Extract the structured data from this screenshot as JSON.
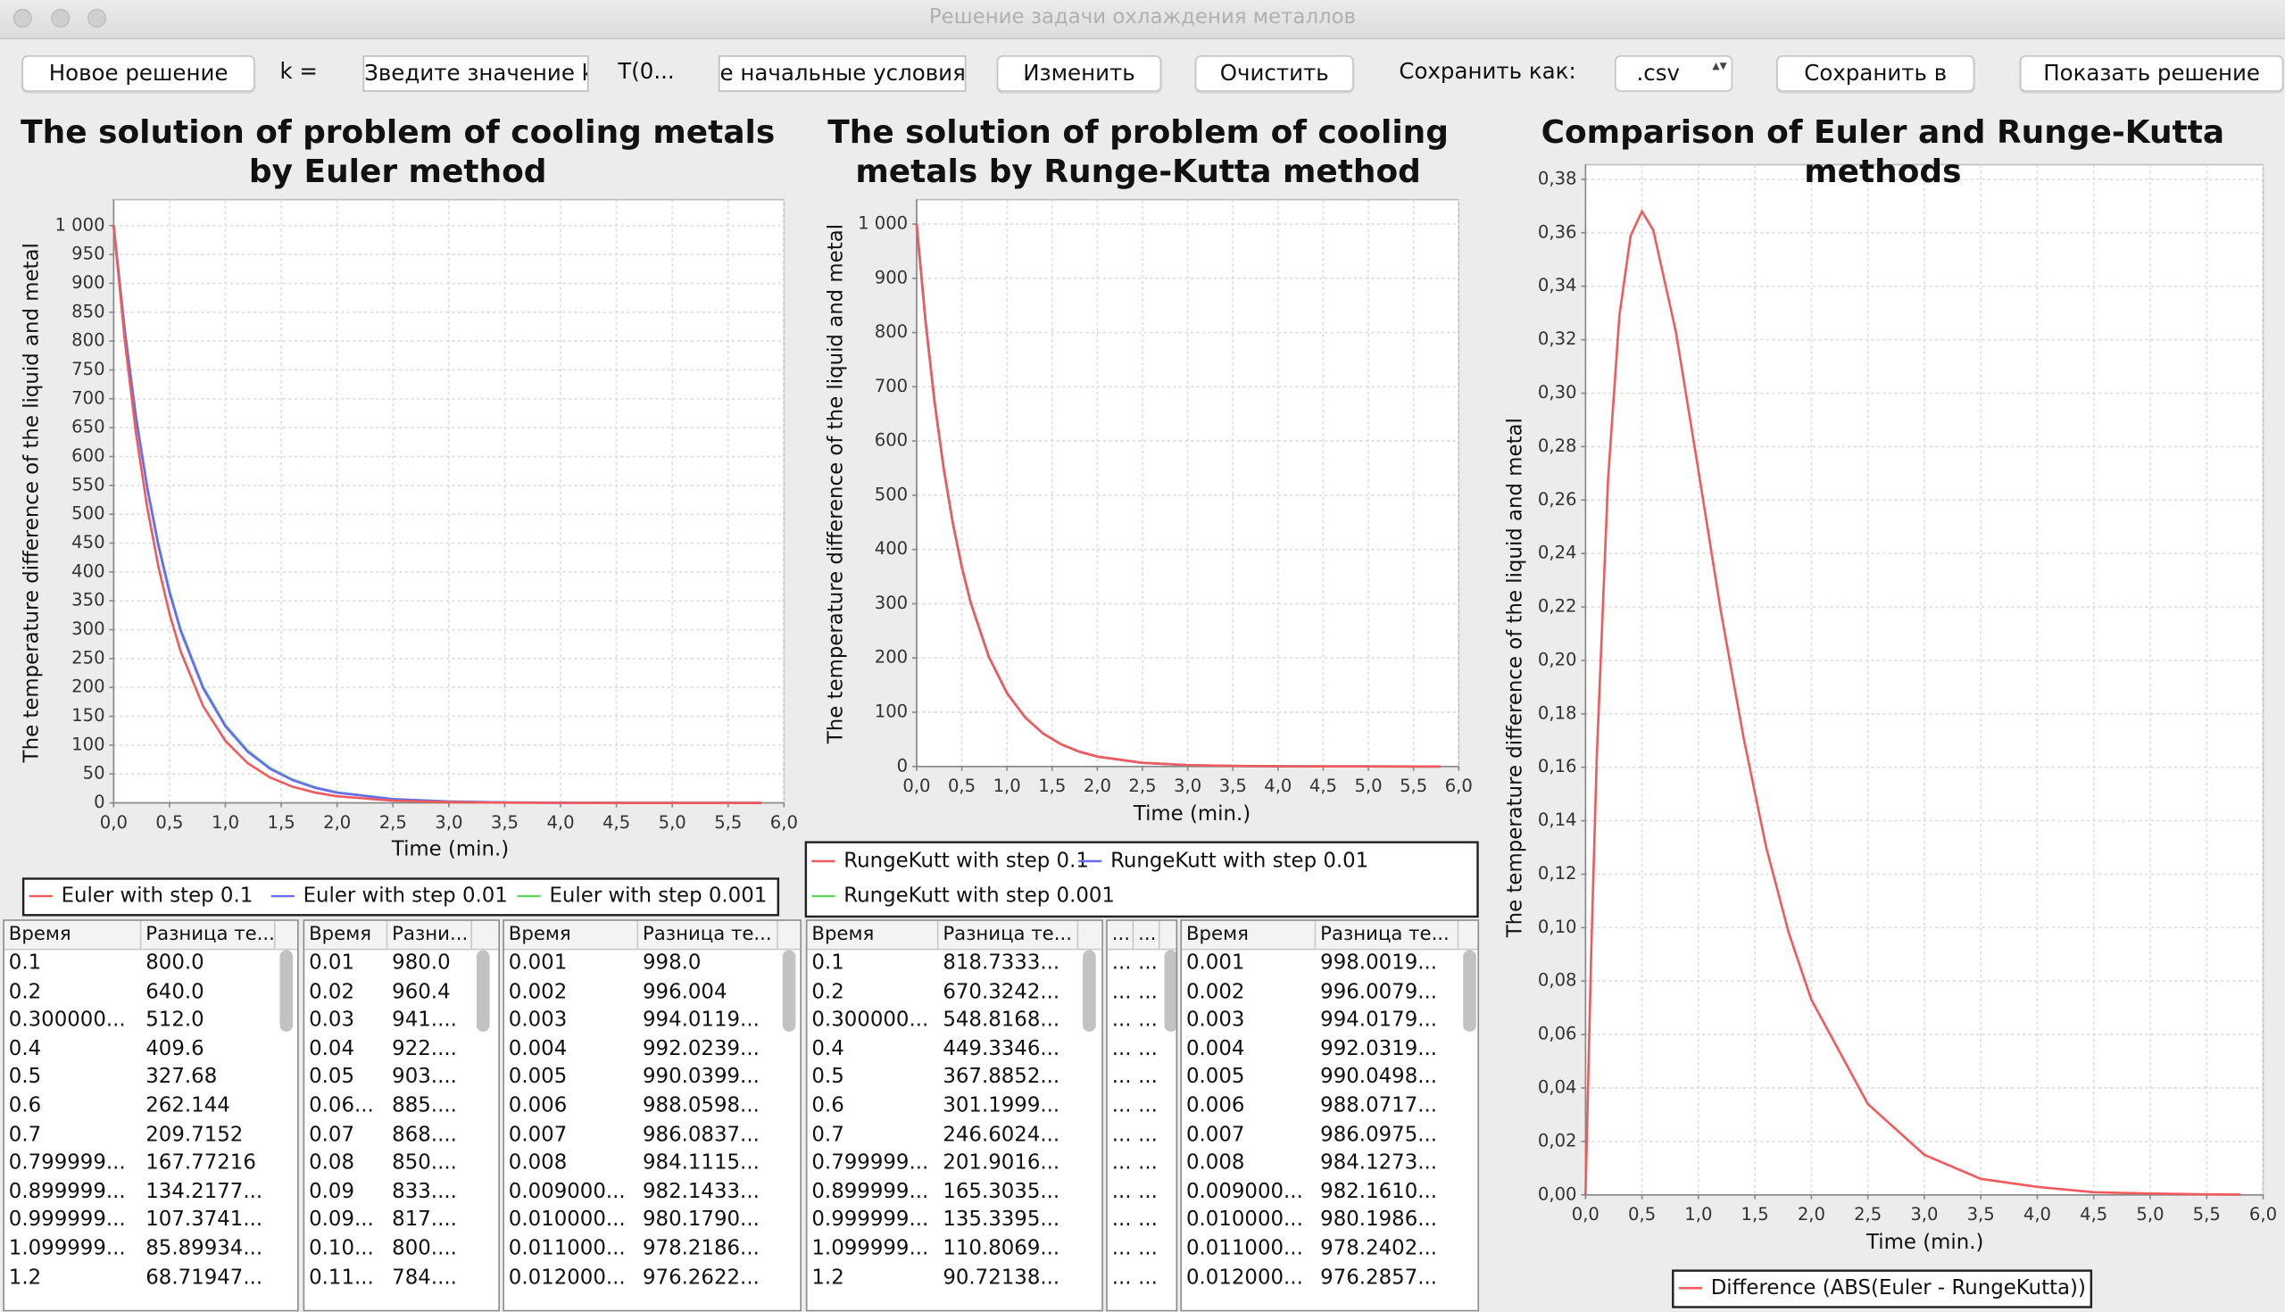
{
  "window": {
    "title": "Решение задачи охлаждения металлов"
  },
  "toolbar": [
    "Новое решение",
    "k =",
    "Зведите значение k",
    "T(0...",
    "е начальные условия",
    "Изменить",
    "Очистить",
    "Сохранить как:",
    ".csv",
    "Сохранить в",
    "Показать решение"
  ],
  "chart_data": [
    {
      "type": "line",
      "title": "The solution of problem of cooling metals by Euler method",
      "xlabel": "Time (min.)",
      "ylabel": "The temperature difference of the liquid and metal",
      "x": [
        0,
        0.1,
        0.2,
        0.3,
        0.4,
        0.5,
        0.6,
        0.8,
        1.0,
        1.2,
        1.4,
        1.6,
        1.8,
        2.0,
        2.5,
        3.0,
        3.5,
        4.0,
        4.5,
        5.0,
        5.5,
        5.8
      ],
      "series": [
        {
          "name": "Euler with step 0.1",
          "color": "#f05a5a",
          "values": [
            1000,
            800,
            640,
            512,
            409.6,
            327.7,
            262.1,
            167.8,
            107.4,
            68.7,
            44.0,
            28.1,
            18.0,
            11.5,
            3.8,
            1.2,
            0.4,
            0.1,
            0.04,
            0.01,
            0,
            0
          ]
        },
        {
          "name": "Euler with step 0.01",
          "color": "#6b6bf2",
          "values": [
            1000,
            817.1,
            667.6,
            545.5,
            445.7,
            364.2,
            297.6,
            198.7,
            132.6,
            88.5,
            59.1,
            39.4,
            26.3,
            17.6,
            6.4,
            2.3,
            0.8,
            0.3,
            0.1,
            0.04,
            0.01,
            0.01
          ]
        },
        {
          "name": "Euler with step 0.001",
          "color": "#5fd65f",
          "values": [
            1000,
            818.6,
            670.1,
            548.6,
            449.1,
            367.5,
            300.8,
            201.6,
            135.0,
            90.5,
            60.6,
            40.6,
            27.2,
            18.3,
            6.7,
            2.5,
            0.9,
            0.3,
            0.1,
            0.04,
            0.02,
            0.01
          ]
        }
      ],
      "xlim": [
        0,
        6
      ],
      "ylim": [
        0,
        1045
      ],
      "xticks": [
        {
          "value": 0,
          "label": "0,0"
        },
        {
          "value": 0.5,
          "label": "0,5"
        },
        {
          "value": 1,
          "label": "1,0"
        },
        {
          "value": 1.5,
          "label": "1,5"
        },
        {
          "value": 2,
          "label": "2,0"
        },
        {
          "value": 2.5,
          "label": "2,5"
        },
        {
          "value": 3,
          "label": "3,0"
        },
        {
          "value": 3.5,
          "label": "3,5"
        },
        {
          "value": 4,
          "label": "4,0"
        },
        {
          "value": 4.5,
          "label": "4,5"
        },
        {
          "value": 5,
          "label": "5,0"
        },
        {
          "value": 5.5,
          "label": "5,5"
        },
        {
          "value": 6,
          "label": "6,0"
        }
      ],
      "yticks": [
        0,
        50,
        100,
        150,
        200,
        250,
        300,
        350,
        400,
        450,
        500,
        550,
        600,
        650,
        700,
        750,
        800,
        850,
        900,
        950,
        {
          "value": 1000,
          "label": "1 000"
        }
      ],
      "grid": true
    },
    {
      "type": "line",
      "title": "The solution of problem of cooling metals by Runge-Kutta method",
      "xlabel": "Time (min.)",
      "ylabel": "The temperature difference of the liquid and metal",
      "x": [
        0,
        0.1,
        0.2,
        0.3,
        0.4,
        0.5,
        0.6,
        0.8,
        1.0,
        1.2,
        1.4,
        1.6,
        1.8,
        2.0,
        2.5,
        3.0,
        3.5,
        4.0,
        4.5,
        5.0,
        5.5,
        5.8
      ],
      "series": [
        {
          "name": "RungeKutt with step 0.1",
          "color": "#f05a5a",
          "values": [
            1000,
            818.7,
            670.3,
            548.8,
            449.3,
            367.9,
            301.2,
            201.9,
            135.3,
            90.7,
            60.8,
            40.8,
            27.3,
            18.3,
            6.7,
            2.5,
            0.9,
            0.3,
            0.1,
            0.05,
            0.02,
            0.01
          ]
        },
        {
          "name": "RungeKutt with step 0.01",
          "color": "#6b6bf2",
          "values": [
            1000,
            818.7,
            670.3,
            548.8,
            449.3,
            367.9,
            301.2,
            201.9,
            135.3,
            90.7,
            60.8,
            40.8,
            27.3,
            18.3,
            6.7,
            2.5,
            0.9,
            0.3,
            0.1,
            0.05,
            0.02,
            0.01
          ]
        },
        {
          "name": "RungeKutt with step 0.001",
          "color": "#5fd65f",
          "values": [
            1000,
            818.7,
            670.3,
            548.8,
            449.3,
            367.9,
            301.2,
            201.9,
            135.3,
            90.7,
            60.8,
            40.8,
            27.3,
            18.3,
            6.7,
            2.5,
            0.9,
            0.3,
            0.1,
            0.05,
            0.02,
            0.01
          ]
        }
      ],
      "xlim": [
        0,
        6
      ],
      "ylim": [
        0,
        1045
      ],
      "xticks": [
        {
          "value": 0,
          "label": "0,0"
        },
        {
          "value": 0.5,
          "label": "0,5"
        },
        {
          "value": 1,
          "label": "1,0"
        },
        {
          "value": 1.5,
          "label": "1,5"
        },
        {
          "value": 2,
          "label": "2,0"
        },
        {
          "value": 2.5,
          "label": "2,5"
        },
        {
          "value": 3,
          "label": "3,0"
        },
        {
          "value": 3.5,
          "label": "3,5"
        },
        {
          "value": 4,
          "label": "4,0"
        },
        {
          "value": 4.5,
          "label": "4,5"
        },
        {
          "value": 5,
          "label": "5,0"
        },
        {
          "value": 5.5,
          "label": "5,5"
        },
        {
          "value": 6,
          "label": "6,0"
        }
      ],
      "yticks": [
        0,
        100,
        200,
        300,
        400,
        500,
        600,
        700,
        800,
        900,
        {
          "value": 1000,
          "label": "1 000"
        }
      ],
      "grid": true
    },
    {
      "type": "line",
      "title": "Comparison of Euler and Runge-Kutta methods",
      "xlabel": "Time (min.)",
      "ylabel": "The temperature difference of the liquid and metal",
      "x": [
        0,
        0.05,
        0.1,
        0.2,
        0.3,
        0.4,
        0.5,
        0.6,
        0.8,
        1.0,
        1.2,
        1.4,
        1.6,
        1.8,
        2.0,
        2.5,
        3.0,
        3.5,
        4.0,
        4.5,
        5.0,
        5.5,
        5.8
      ],
      "series": [
        {
          "name": "Difference (ABS(Euler - RungeKutta))",
          "color": "#f05a5a",
          "values": [
            0,
            0.09,
            0.164,
            0.268,
            0.329,
            0.359,
            0.368,
            0.361,
            0.323,
            0.271,
            0.218,
            0.171,
            0.13,
            0.098,
            0.073,
            0.034,
            0.015,
            0.006,
            0.003,
            0.001,
            0.0005,
            0.0002,
            0.0001
          ]
        }
      ],
      "xlim": [
        0,
        6
      ],
      "ylim": [
        0,
        0.3855
      ],
      "xticks": [
        {
          "value": 0,
          "label": "0,0"
        },
        {
          "value": 0.5,
          "label": "0,5"
        },
        {
          "value": 1,
          "label": "1,0"
        },
        {
          "value": 1.5,
          "label": "1,5"
        },
        {
          "value": 2,
          "label": "2,0"
        },
        {
          "value": 2.5,
          "label": "2,5"
        },
        {
          "value": 3,
          "label": "3,0"
        },
        {
          "value": 3.5,
          "label": "3,5"
        },
        {
          "value": 4,
          "label": "4,0"
        },
        {
          "value": 4.5,
          "label": "4,5"
        },
        {
          "value": 5,
          "label": "5,0"
        },
        {
          "value": 5.5,
          "label": "5,5"
        },
        {
          "value": 6,
          "label": "6,0"
        }
      ],
      "yticks": [
        {
          "value": 0,
          "label": "0,00"
        },
        {
          "value": 0.02,
          "label": "0,02"
        },
        {
          "value": 0.04,
          "label": "0,04"
        },
        {
          "value": 0.06,
          "label": "0,06"
        },
        {
          "value": 0.08,
          "label": "0,08"
        },
        {
          "value": 0.1,
          "label": "0,10"
        },
        {
          "value": 0.12,
          "label": "0,12"
        },
        {
          "value": 0.14,
          "label": "0,14"
        },
        {
          "value": 0.16,
          "label": "0,16"
        },
        {
          "value": 0.18,
          "label": "0,18"
        },
        {
          "value": 0.2,
          "label": "0,20"
        },
        {
          "value": 0.22,
          "label": "0,22"
        },
        {
          "value": 0.24,
          "label": "0,24"
        },
        {
          "value": 0.26,
          "label": "0,26"
        },
        {
          "value": 0.28,
          "label": "0,28"
        },
        {
          "value": 0.3,
          "label": "0,30"
        },
        {
          "value": 0.32,
          "label": "0,32"
        },
        {
          "value": 0.34,
          "label": "0,34"
        },
        {
          "value": 0.36,
          "label": "0,36"
        },
        {
          "value": 0.38,
          "label": "0,38"
        }
      ],
      "grid": true
    }
  ],
  "tables": [
    {
      "headers": [
        "Время",
        "Разница те..."
      ],
      "rows": [
        [
          "0.1",
          "800.0"
        ],
        [
          "0.2",
          "640.0"
        ],
        [
          "0.300000...",
          "512.0"
        ],
        [
          "0.4",
          "409.6"
        ],
        [
          "0.5",
          "327.68"
        ],
        [
          "0.6",
          "262.144"
        ],
        [
          "0.7",
          "209.7152"
        ],
        [
          "0.799999...",
          "167.77216"
        ],
        [
          "0.899999...",
          "134.2177..."
        ],
        [
          "0.999999...",
          "107.3741..."
        ],
        [
          "1.099999...",
          "85.89934..."
        ],
        [
          "1.2",
          "68.71947..."
        ]
      ]
    },
    {
      "headers": [
        "Время",
        "Разни..."
      ],
      "rows": [
        [
          "0.01",
          "980.0"
        ],
        [
          "0.02",
          "960.4"
        ],
        [
          "0.03",
          "941...."
        ],
        [
          "0.04",
          "922...."
        ],
        [
          "0.05",
          "903...."
        ],
        [
          "0.06...",
          "885...."
        ],
        [
          "0.07",
          "868...."
        ],
        [
          "0.08",
          "850...."
        ],
        [
          "0.09",
          "833...."
        ],
        [
          "0.09...",
          "817...."
        ],
        [
          "0.10...",
          "800...."
        ],
        [
          "0.11...",
          "784...."
        ]
      ]
    },
    {
      "headers": [
        "Время",
        "Разница те..."
      ],
      "rows": [
        [
          "0.001",
          "998.0"
        ],
        [
          "0.002",
          "996.004"
        ],
        [
          "0.003",
          "994.0119..."
        ],
        [
          "0.004",
          "992.0239..."
        ],
        [
          "0.005",
          "990.0399..."
        ],
        [
          "0.006",
          "988.0598..."
        ],
        [
          "0.007",
          "986.0837..."
        ],
        [
          "0.008",
          "984.1115..."
        ],
        [
          "0.009000...",
          "982.1433..."
        ],
        [
          "0.010000...",
          "980.1790..."
        ],
        [
          "0.011000...",
          "978.2186..."
        ],
        [
          "0.012000...",
          "976.2622..."
        ]
      ]
    },
    {
      "headers": [
        "Время",
        "Разница те..."
      ],
      "rows": [
        [
          "0.1",
          "818.7333..."
        ],
        [
          "0.2",
          "670.3242..."
        ],
        [
          "0.300000...",
          "548.8168..."
        ],
        [
          "0.4",
          "449.3346..."
        ],
        [
          "0.5",
          "367.8852..."
        ],
        [
          "0.6",
          "301.1999..."
        ],
        [
          "0.7",
          "246.6024..."
        ],
        [
          "0.799999...",
          "201.9016..."
        ],
        [
          "0.899999...",
          "165.3035..."
        ],
        [
          "0.999999...",
          "135.3395..."
        ],
        [
          "1.099999...",
          "110.8069..."
        ],
        [
          "1.2",
          "90.72138..."
        ]
      ]
    },
    {
      "headers": [
        "...",
        "..."
      ],
      "rows": [
        [
          "...",
          "..."
        ],
        [
          "...",
          "..."
        ],
        [
          "...",
          "..."
        ],
        [
          "...",
          "..."
        ],
        [
          "...",
          "..."
        ],
        [
          "...",
          "..."
        ],
        [
          "...",
          "..."
        ],
        [
          "...",
          "..."
        ],
        [
          "...",
          "..."
        ],
        [
          "...",
          "..."
        ],
        [
          "...",
          "..."
        ],
        [
          "...",
          "..."
        ]
      ]
    },
    {
      "headers": [
        "Время",
        "Разница те..."
      ],
      "rows": [
        [
          "0.001",
          "998.0019..."
        ],
        [
          "0.002",
          "996.0079..."
        ],
        [
          "0.003",
          "994.0179..."
        ],
        [
          "0.004",
          "992.0319..."
        ],
        [
          "0.005",
          "990.0498..."
        ],
        [
          "0.006",
          "988.0717..."
        ],
        [
          "0.007",
          "986.0975..."
        ],
        [
          "0.008",
          "984.1273..."
        ],
        [
          "0.009000...",
          "982.1610..."
        ],
        [
          "0.010000...",
          "980.1986..."
        ],
        [
          "0.011000...",
          "978.2402..."
        ],
        [
          "0.012000...",
          "976.2857..."
        ]
      ]
    }
  ]
}
